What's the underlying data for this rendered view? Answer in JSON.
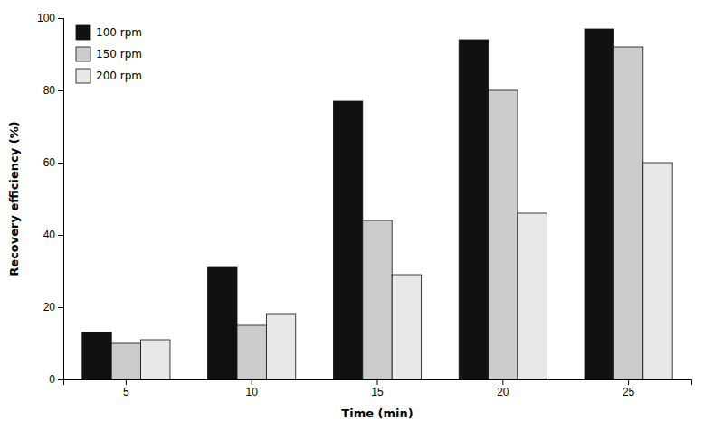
{
  "chart_data": {
    "type": "bar",
    "xlabel": "Time (min)",
    "ylabel": "Recovery efficiency (%)",
    "categories": [
      "5",
      "10",
      "15",
      "20",
      "25"
    ],
    "series": [
      {
        "name": "100 rpm",
        "color": "#111111",
        "values": [
          13,
          31,
          77,
          94,
          97
        ]
      },
      {
        "name": "150 rpm",
        "color": "#cccccc",
        "values": [
          10,
          15,
          44,
          80,
          92
        ]
      },
      {
        "name": "200 rpm",
        "color": "#e8e8e8",
        "values": [
          11,
          18,
          29,
          46,
          60
        ]
      }
    ],
    "ylim": [
      0,
      100
    ],
    "yticks": [
      0,
      20,
      40,
      60,
      80,
      100
    ],
    "grid": false,
    "legend": "upper left"
  }
}
